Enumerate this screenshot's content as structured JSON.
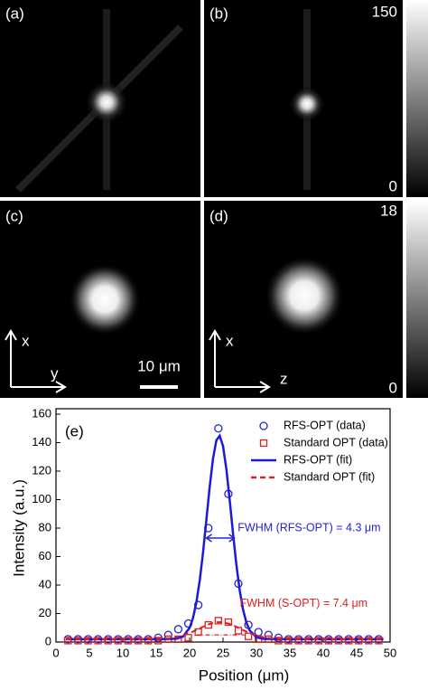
{
  "image_panels": {
    "labels": [
      "(a)",
      "(b)",
      "(c)",
      "(d)"
    ],
    "colorbar_top": {
      "max": 150,
      "min": 0
    },
    "colorbar_bottom": {
      "max": 18,
      "min": 0
    },
    "axes_c": {
      "vertical": "x",
      "horizontal": "y"
    },
    "axes_d": {
      "vertical": "x",
      "horizontal": "z"
    },
    "scale_bar": "10 μm"
  },
  "chart_data": {
    "type": "line",
    "panel_label": "(e)",
    "x_label": "Position (μm)",
    "y_label": "Intensity (a.u.)",
    "xlim": [
      0,
      50
    ],
    "ylim": [
      0,
      160
    ],
    "xticks": [
      0,
      5,
      10,
      15,
      20,
      25,
      30,
      35,
      40,
      45,
      50
    ],
    "yticks": [
      0,
      20,
      40,
      60,
      80,
      100,
      120,
      140,
      160
    ],
    "legend": "top-right",
    "series": [
      {
        "name": "RFS-OPT (data)",
        "color": "#2323d0",
        "style": "circle",
        "x": [
          1.8,
          3.3,
          4.8,
          6.3,
          7.8,
          9.3,
          10.8,
          12.3,
          13.8,
          15.3,
          16.8,
          18.3,
          19.8,
          21.3,
          22.8,
          24.3,
          25.8,
          27.3,
          28.8,
          30.3,
          31.8,
          33.3,
          34.8,
          36.3,
          37.8,
          39.3,
          40.8,
          42.3,
          43.8,
          45.3,
          46.8,
          48.3
        ],
        "values": [
          2,
          2,
          2,
          2,
          2,
          2,
          2,
          2,
          2,
          3,
          5,
          9,
          13,
          26,
          80,
          150,
          104,
          41,
          12,
          7,
          5,
          3,
          2,
          2,
          2,
          2,
          2,
          2,
          2,
          2,
          2,
          2
        ]
      },
      {
        "name": "Standard OPT (data)",
        "color": "#e02020",
        "style": "square",
        "x": [
          1.8,
          3.3,
          4.8,
          6.3,
          7.8,
          9.3,
          10.8,
          12.3,
          13.8,
          15.3,
          16.8,
          18.3,
          19.8,
          21.3,
          22.8,
          24.3,
          25.8,
          27.3,
          28.8,
          30.3,
          31.8,
          33.3,
          34.8,
          36.3,
          37.8,
          39.3,
          40.8,
          42.3,
          43.8,
          45.3,
          46.8,
          48.3
        ],
        "values": [
          1,
          1,
          1,
          1,
          1,
          1,
          1,
          1,
          1,
          1,
          2,
          2,
          3,
          7,
          12,
          15,
          14,
          8,
          4,
          2,
          2,
          1,
          1,
          1,
          1,
          1,
          1,
          1,
          1,
          1,
          1,
          1
        ]
      },
      {
        "name": "RFS-OPT (fit)",
        "color": "#1a1ad8",
        "style": "solid",
        "x": [
          1.5,
          10,
          15,
          18,
          19,
          20,
          20.5,
          21,
          21.5,
          22,
          22.5,
          23,
          23.5,
          24,
          24.5,
          25,
          25.5,
          26,
          26.5,
          27,
          27.5,
          28,
          28.5,
          29,
          30,
          31,
          35,
          40,
          45,
          49
        ],
        "values": [
          2,
          2,
          2,
          2.3,
          3.8,
          10,
          16.8,
          27.5,
          42.8,
          62.5,
          85.4,
          108.7,
          128.7,
          141.6,
          144.8,
          137.6,
          121.4,
          99.6,
          76.1,
          54.2,
          36.1,
          22.7,
          13.6,
          8.1,
          3.3,
          2.2,
          2,
          2,
          2,
          2
        ]
      },
      {
        "name": "Standard OPT (fit)",
        "color": "#e02020",
        "style": "dashed",
        "x": [
          1.5,
          10,
          15,
          17,
          18,
          19,
          20,
          21,
          22,
          23,
          24,
          24.5,
          25,
          26,
          27,
          28,
          29,
          30,
          31,
          32,
          34,
          40,
          49
        ],
        "values": [
          2,
          2,
          2.1,
          2.7,
          3.4,
          4.6,
          6.3,
          8.4,
          10.7,
          12.7,
          13.8,
          14,
          13.8,
          12.7,
          10.7,
          8.4,
          6.3,
          4.6,
          3.4,
          2.7,
          2.1,
          2,
          2
        ]
      }
    ],
    "annotations": [
      {
        "text": "FWHM (RFS-OPT) = 4.3 μm",
        "color": "#2323d0"
      },
      {
        "text": "FWHM (S-OPT) = 7.4 μm",
        "color": "#e02020"
      }
    ]
  }
}
